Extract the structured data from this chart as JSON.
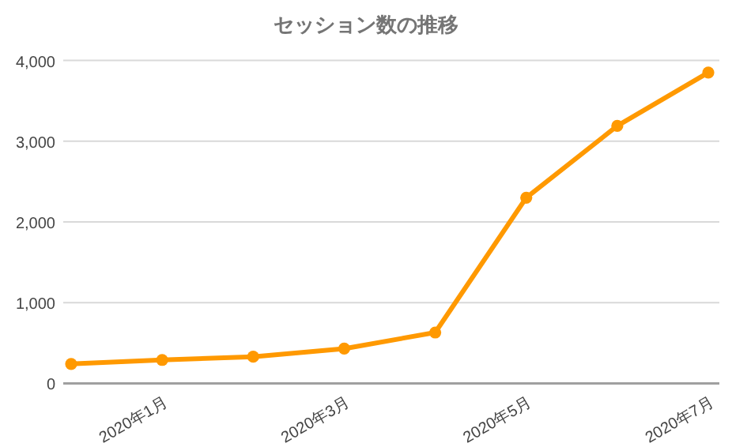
{
  "chart_data": {
    "type": "line",
    "title": "セッション数の推移",
    "categories": [
      null,
      "2020年1月",
      null,
      "2020年3月",
      null,
      "2020年5月",
      null,
      "2020年7月"
    ],
    "series": [
      {
        "color": "#ff9900",
        "values": [
          240,
          290,
          330,
          430,
          630,
          2300,
          3190,
          3850
        ]
      }
    ],
    "ylim": [
      0,
      4000
    ],
    "yticks": [
      {
        "value": 0,
        "label": "0"
      },
      {
        "value": 1000,
        "label": "1,000"
      },
      {
        "value": 2000,
        "label": "2,000"
      },
      {
        "value": 3000,
        "label": "3,000"
      },
      {
        "value": 4000,
        "label": "4,000"
      }
    ],
    "grid": "y",
    "marker": "circle",
    "line_style": "solid"
  }
}
